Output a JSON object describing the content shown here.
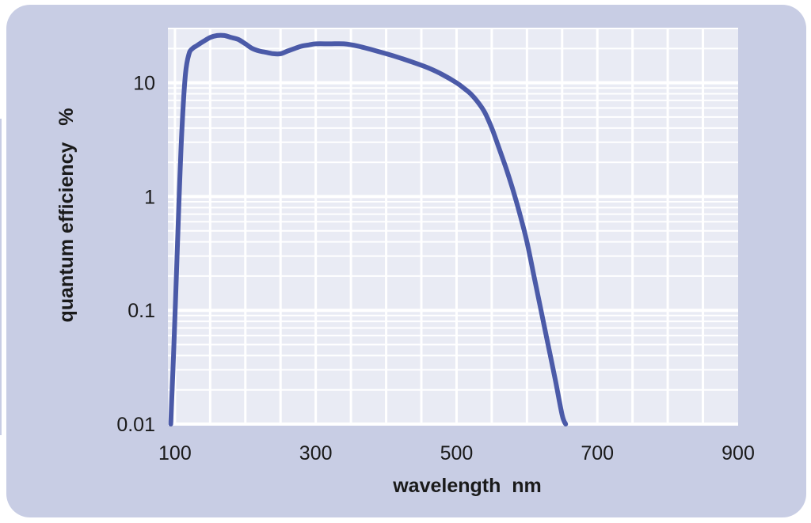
{
  "chart_data": {
    "type": "line",
    "title": "",
    "xlabel": "wavelength  nm",
    "ylabel": "quantum efficiency   %",
    "xscale": "linear",
    "yscale": "log",
    "xlim": [
      90,
      900
    ],
    "ylim": [
      0.01,
      30
    ],
    "x_ticks": [
      100,
      300,
      500,
      700,
      900
    ],
    "x_tick_labels": [
      "100",
      "300",
      "500",
      "700",
      "900"
    ],
    "y_ticks": [
      0.01,
      0.1,
      1,
      10
    ],
    "y_tick_labels": [
      "0.01",
      "0.1",
      "1",
      "10"
    ],
    "grid": true,
    "legend": "none",
    "colors": {
      "line": "#4b5aa8",
      "plot_background": "#e9ebf4",
      "frame_background": "#c8cde4",
      "grid": "#ffffff"
    },
    "series": [
      {
        "x": [
          94,
          98,
          102,
          106,
          110,
          115,
          120,
          125,
          130,
          140,
          150,
          160,
          170,
          180,
          190,
          200,
          210,
          220,
          230,
          240,
          250,
          260,
          270,
          280,
          290,
          300,
          320,
          340,
          360,
          380,
          400,
          420,
          440,
          460,
          480,
          500,
          510,
          520,
          530,
          540,
          550,
          560,
          570,
          580,
          590,
          600,
          610,
          620,
          630,
          640,
          650,
          655
        ],
        "y": [
          0.01,
          0.04,
          0.2,
          1.0,
          4.0,
          12,
          18,
          20,
          21,
          23,
          25,
          26,
          26,
          25,
          24,
          22,
          20,
          19,
          18.5,
          18,
          18,
          19,
          20,
          21,
          21.5,
          22,
          22,
          22,
          21,
          19.5,
          18,
          16.5,
          15,
          13.5,
          11.8,
          10,
          9,
          8,
          6.8,
          5.5,
          4,
          2.7,
          1.8,
          1.15,
          0.7,
          0.4,
          0.2,
          0.1,
          0.05,
          0.025,
          0.012,
          0.01
        ]
      }
    ]
  }
}
